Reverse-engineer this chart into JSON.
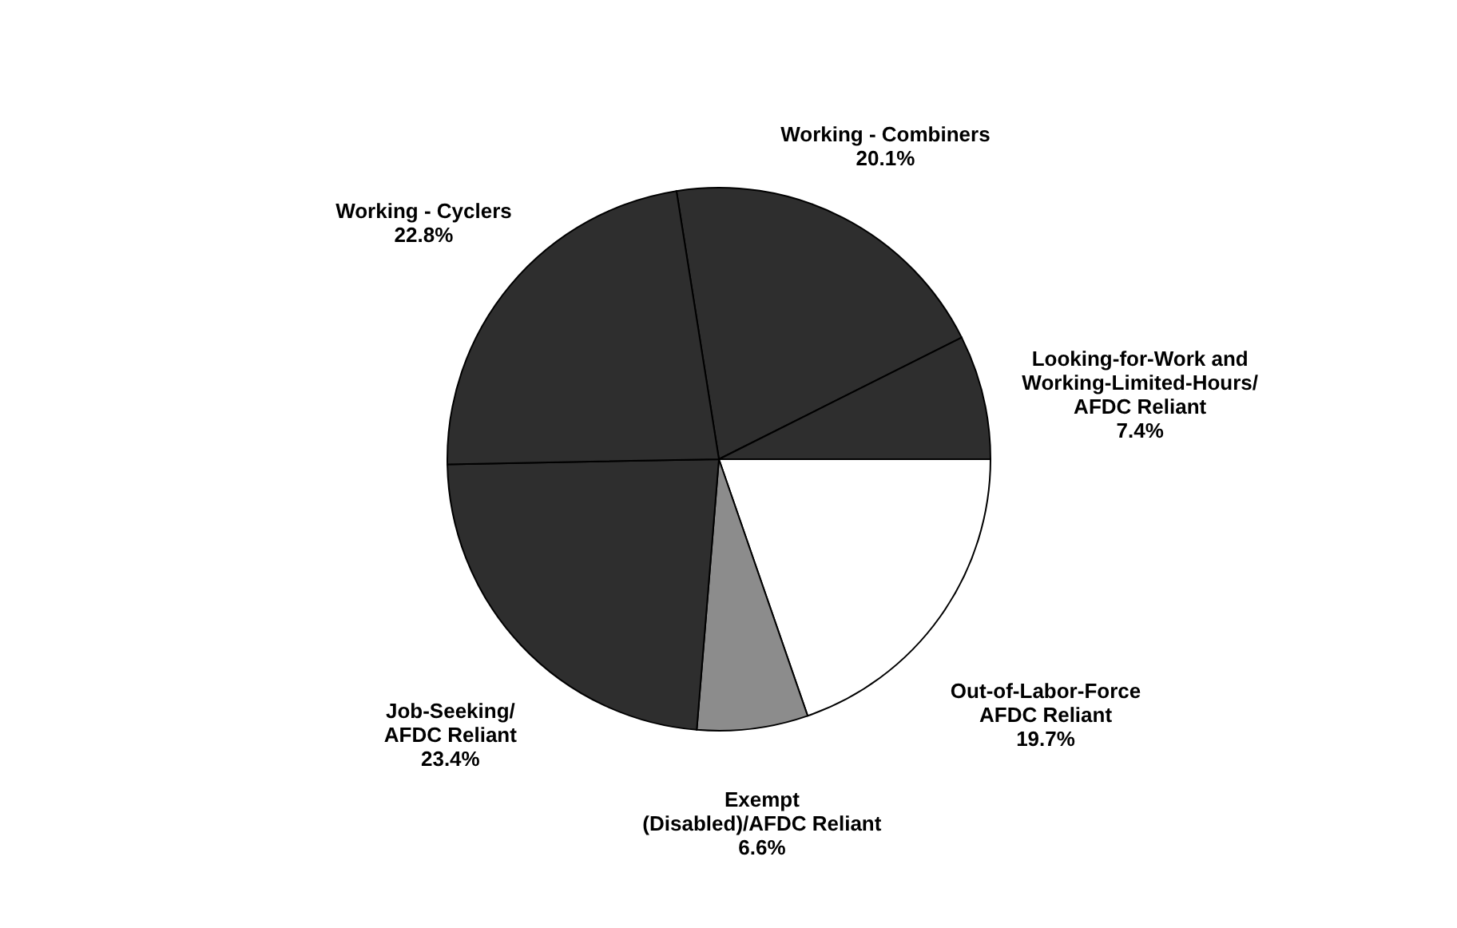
{
  "chart_data": {
    "type": "pie",
    "categories": [
      "Working - Combiners",
      "Looking-for-Work and\nWorking-Limited-Hours/\nAFDC Reliant",
      "Out-of-Labor-Force\nAFDC Reliant",
      "Exempt\n(Disabled)/AFDC Reliant",
      "Job-Seeking/\nAFDC Reliant",
      "Working - Cyclers"
    ],
    "values": [
      20.1,
      7.4,
      19.7,
      6.6,
      23.4,
      22.8
    ],
    "value_labels": [
      "20.1%",
      "7.4%",
      "19.7%",
      "6.6%",
      "23.4%",
      "22.8%"
    ],
    "colors": [
      "#2e2e2e",
      "#2e2e2e",
      "#ffffff",
      "#8c8c8c",
      "#2e2e2e",
      "#2e2e2e"
    ]
  }
}
